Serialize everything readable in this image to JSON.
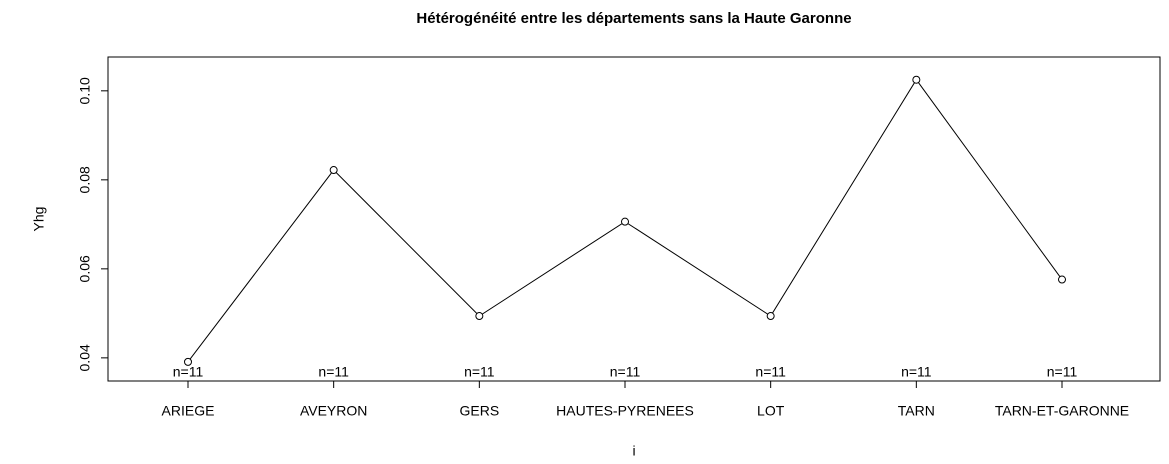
{
  "chart_data": {
    "type": "line",
    "title": "Hétérogénéité entre les départements sans la Haute Garonne",
    "x_label": "i",
    "y_label": "Yhg",
    "categories": [
      "ARIEGE",
      "AVEYRON",
      "GERS",
      "HAUTES-PYRENEES",
      "LOT",
      "TARN",
      "TARN-ET-GARONNE"
    ],
    "series": [
      {
        "name": "Yhg",
        "color": "#000000",
        "values": [
          0.0391,
          0.0822,
          0.0494,
          0.0706,
          0.0494,
          0.1025,
          0.0576
        ]
      }
    ],
    "annotations": [
      "n=11",
      "n=11",
      "n=11",
      "n=11",
      "n=11",
      "n=11",
      "n=11"
    ],
    "ylim": [
      0.0348,
      0.1076
    ],
    "yticks": [
      0.04,
      0.06,
      0.08,
      {
        "value": 0.1,
        "label": "0.10"
      }
    ]
  }
}
